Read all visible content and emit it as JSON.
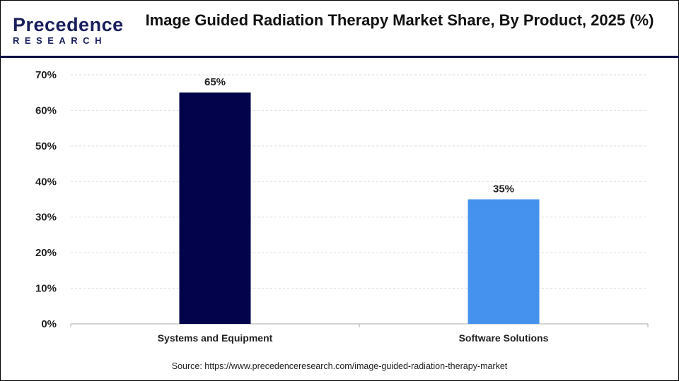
{
  "header": {
    "logo_text_top": "Precedence",
    "logo_text_bottom": "RESEARCH",
    "title": "Image Guided Radiation Therapy Market Share, By Product, 2025 (%)"
  },
  "source": "Source: https://www.precedenceresearch.com/image-guided-radiation-therapy-market",
  "chart_data": {
    "type": "bar",
    "title": "Image Guided Radiation Therapy Market Share, By Product, 2025 (%)",
    "categories": [
      "Systems and Equipment",
      "Software Solutions"
    ],
    "values": [
      65,
      35
    ],
    "data_labels": [
      "65%",
      "35%"
    ],
    "colors": [
      "#02034a",
      "#4592ee"
    ],
    "yticks": [
      "0%",
      "10%",
      "20%",
      "30%",
      "40%",
      "50%",
      "60%",
      "70%"
    ],
    "ylim": [
      0,
      70
    ],
    "grid": true,
    "xlabel": "",
    "ylabel": ""
  }
}
